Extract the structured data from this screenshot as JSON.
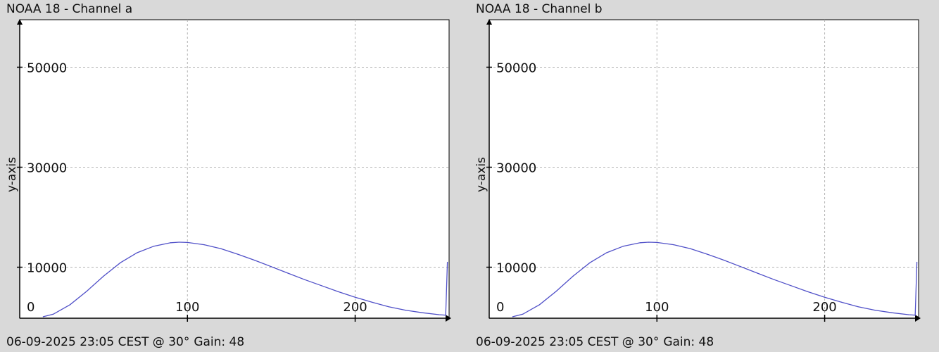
{
  "colors": {
    "background": "#d9d9d9",
    "plot_bg": "#ffffff",
    "line": "#5050c8",
    "grid": "#b4b4b4",
    "axis": "#000000"
  },
  "panels": [
    {
      "title": "NOAA 18 - Channel a",
      "footer": {
        "datetime": "06-09-2025 23:05 CEST @ 30°",
        "gain": "Gain: 48"
      }
    },
    {
      "title": "NOAA 18 - Channel b",
      "footer": {
        "datetime": "06-09-2025 23:05 CEST @ 30°",
        "gain": "Gain: 48"
      }
    }
  ],
  "chart_data": [
    {
      "type": "line",
      "ylabel": "y-axis",
      "xlim": [
        0,
        256
      ],
      "ylim": [
        -200,
        59500
      ],
      "xticks": [
        100,
        200
      ],
      "yticks": [
        0,
        10000,
        30000,
        50000
      ],
      "grid": true,
      "series": [
        {
          "x": [
            14,
            20,
            30,
            40,
            50,
            60,
            70,
            80,
            90,
            95,
            100,
            110,
            120,
            130,
            140,
            150,
            160,
            170,
            180,
            190,
            200,
            210,
            220,
            230,
            240,
            250,
            254,
            255
          ],
          "y": [
            100,
            600,
            2500,
            5200,
            8200,
            10900,
            12900,
            14200,
            14900,
            15000,
            14950,
            14500,
            13700,
            12600,
            11400,
            10100,
            8800,
            7500,
            6300,
            5100,
            4000,
            3000,
            2100,
            1400,
            900,
            500,
            400,
            11000
          ]
        }
      ]
    },
    {
      "type": "line",
      "ylabel": "y-axis",
      "xlim": [
        0,
        256
      ],
      "ylim": [
        -200,
        59500
      ],
      "xticks": [
        100,
        200
      ],
      "yticks": [
        0,
        10000,
        30000,
        50000
      ],
      "grid": true,
      "series": [
        {
          "x": [
            14,
            20,
            30,
            40,
            50,
            60,
            70,
            80,
            90,
            95,
            100,
            110,
            120,
            130,
            140,
            150,
            160,
            170,
            180,
            190,
            200,
            210,
            220,
            230,
            240,
            250,
            254,
            255
          ],
          "y": [
            100,
            600,
            2500,
            5200,
            8200,
            10900,
            12900,
            14200,
            14900,
            15000,
            14950,
            14500,
            13700,
            12600,
            11400,
            10100,
            8800,
            7500,
            6300,
            5100,
            4000,
            3000,
            2100,
            1400,
            900,
            500,
            400,
            11000
          ]
        }
      ]
    }
  ]
}
